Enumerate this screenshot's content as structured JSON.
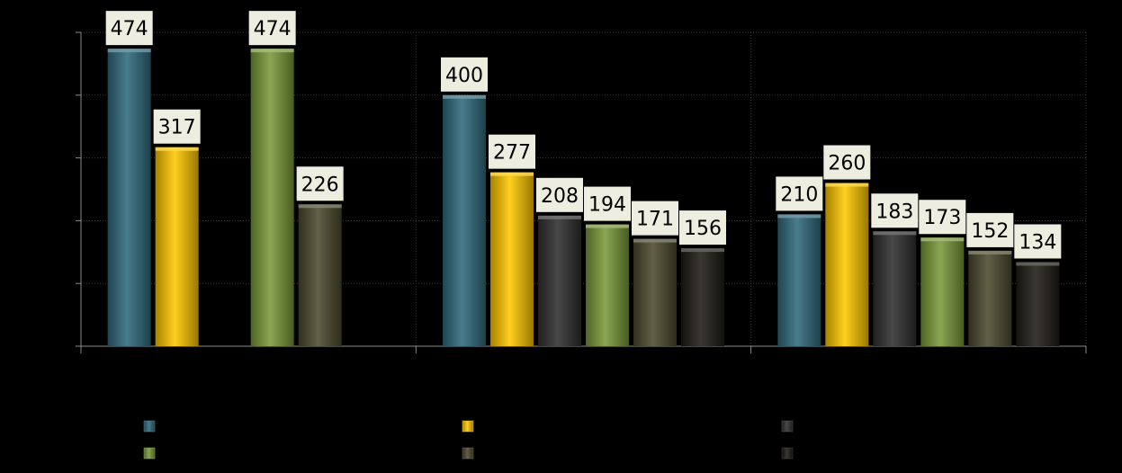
{
  "chart_data": {
    "type": "bar",
    "title": "",
    "xlabel": "",
    "ylabel": "",
    "ylim": [
      0,
      500
    ],
    "grid": true,
    "legend_position": "bottom",
    "categories": [
      "",
      "",
      ""
    ],
    "series": [
      {
        "color": "#2f6a7c",
        "values": [
          474,
          400,
          210
        ]
      },
      {
        "color": "#ffc800",
        "values": [
          317,
          277,
          260
        ]
      },
      {
        "color": "#2f2f2f",
        "values": [
          null,
          208,
          183
        ]
      },
      {
        "color": "#7a9a3a",
        "values": [
          474,
          194,
          173
        ]
      },
      {
        "color": "#4d4a2e",
        "values": [
          226,
          171,
          152
        ]
      },
      {
        "color": "#1e1c14",
        "values": [
          null,
          156,
          134
        ]
      }
    ]
  }
}
